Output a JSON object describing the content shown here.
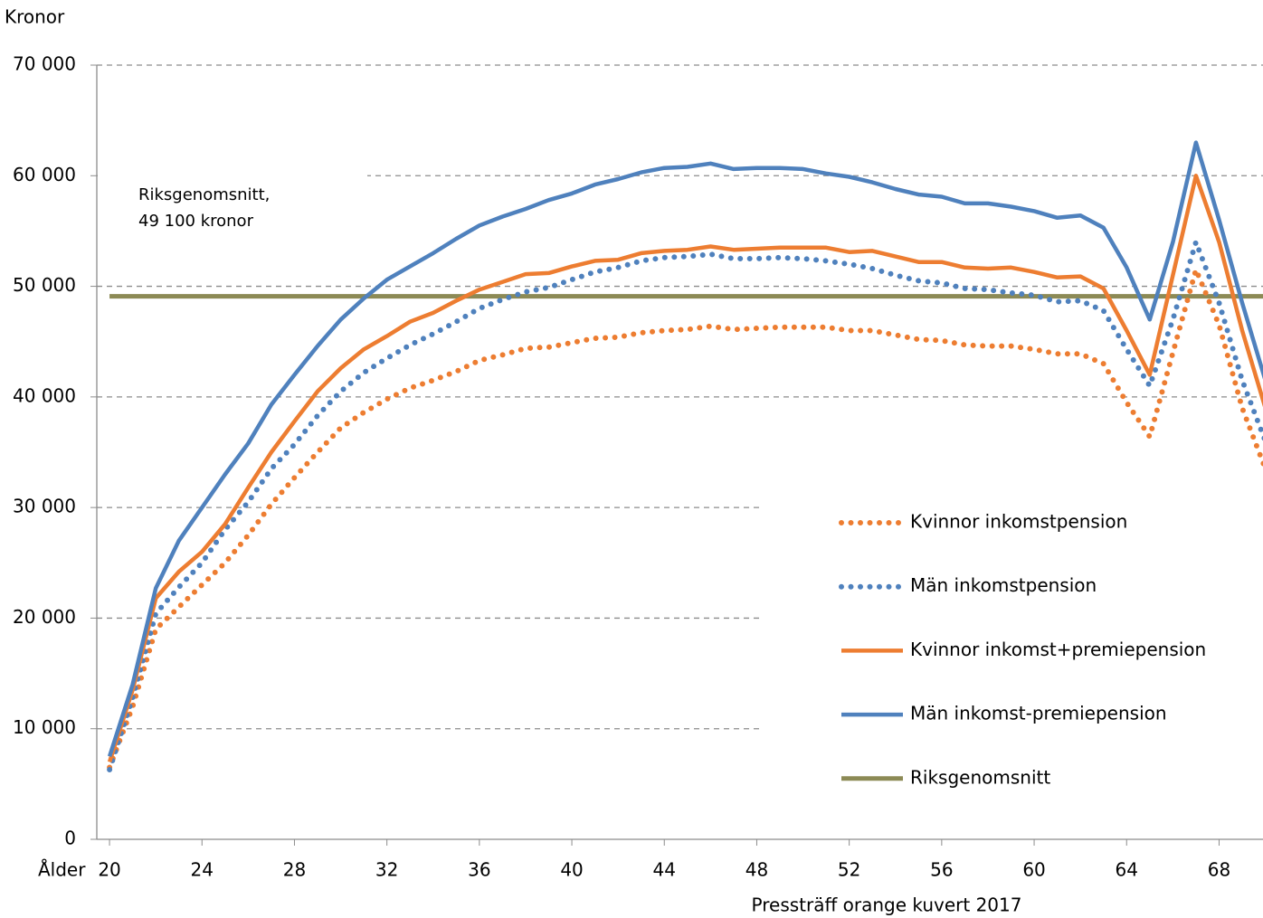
{
  "chart_data": {
    "type": "line",
    "y_label": "Kronor",
    "x_label": "Ålder",
    "footer": "Pressträff orange kuvert 2017",
    "annotation": [
      "Riksgenomsnitt,",
      "49 100 kronor"
    ],
    "x": [
      20,
      21,
      22,
      23,
      24,
      25,
      26,
      27,
      28,
      29,
      30,
      31,
      32,
      33,
      34,
      35,
      36,
      37,
      38,
      39,
      40,
      41,
      42,
      43,
      44,
      45,
      46,
      47,
      48,
      49,
      50,
      51,
      52,
      53,
      54,
      55,
      56,
      57,
      58,
      59,
      60,
      61,
      62,
      63,
      64,
      65,
      66,
      67,
      68,
      69,
      70
    ],
    "xlim": [
      19.45,
      69.9
    ],
    "xticks": [
      20,
      24,
      28,
      32,
      36,
      40,
      44,
      48,
      52,
      56,
      60,
      64,
      68
    ],
    "ylim": [
      0,
      70000
    ],
    "yticks": [
      0,
      {
        "value": 10000,
        "label": "10 000"
      },
      {
        "value": 20000,
        "label": "20 000"
      },
      {
        "value": 30000,
        "label": "30 000"
      },
      {
        "value": 40000,
        "label": "40 000"
      },
      {
        "value": 50000,
        "label": "50 000"
      },
      {
        "value": 60000,
        "label": "60 000"
      },
      {
        "value": 70000,
        "label": "70 000"
      }
    ],
    "grid": true,
    "series": [
      {
        "name": "Kvinnor inkomstpension",
        "color": "#ed7d31",
        "style": "dotted",
        "values": [
          6500,
          12000,
          19000,
          21000,
          23000,
          25000,
          27500,
          30300,
          32700,
          35000,
          37200,
          38600,
          39800,
          40800,
          41500,
          42300,
          43300,
          43800,
          44400,
          44500,
          44900,
          45300,
          45400,
          45800,
          46000,
          46100,
          46400,
          46100,
          46200,
          46300,
          46300,
          46300,
          46000,
          46000,
          45600,
          45200,
          45100,
          44700,
          44600,
          44600,
          44300,
          43900,
          43900,
          43000,
          39500,
          36400,
          44000,
          51500,
          46500,
          39000,
          33500
        ]
      },
      {
        "name": "Män inkomstpension",
        "color": "#4f81bd",
        "style": "dotted",
        "values": [
          6300,
          12800,
          20400,
          22800,
          25000,
          28000,
          30500,
          33500,
          35700,
          38300,
          40500,
          42200,
          43500,
          44700,
          45700,
          46800,
          48000,
          48800,
          49500,
          49900,
          50600,
          51300,
          51700,
          52300,
          52600,
          52700,
          52900,
          52500,
          52500,
          52600,
          52500,
          52300,
          52000,
          51600,
          51000,
          50500,
          50300,
          49800,
          49700,
          49400,
          49200,
          48600,
          48700,
          47800,
          44300,
          41000,
          47000,
          54000,
          48500,
          41500,
          36000
        ]
      },
      {
        "name": "Kvinnor inkomst+premiepension",
        "color": "#ed7d31",
        "style": "solid",
        "values": [
          7000,
          13500,
          21800,
          24200,
          26000,
          28500,
          31800,
          35000,
          37800,
          40500,
          42600,
          44300,
          45500,
          46800,
          47600,
          48700,
          49700,
          50400,
          51100,
          51200,
          51800,
          52300,
          52400,
          53000,
          53200,
          53300,
          53600,
          53300,
          53400,
          53500,
          53500,
          53500,
          53100,
          53200,
          52700,
          52200,
          52200,
          51700,
          51600,
          51700,
          51300,
          50800,
          50900,
          49800,
          46000,
          42000,
          51000,
          60000,
          54000,
          46000,
          39000
        ]
      },
      {
        "name": "Män inkomst-premiepension",
        "color": "#4f81bd",
        "style": "solid",
        "values": [
          7500,
          14000,
          22700,
          27000,
          30000,
          33000,
          35800,
          39300,
          42000,
          44600,
          47000,
          48900,
          50600,
          51800,
          53000,
          54300,
          55500,
          56300,
          57000,
          57800,
          58400,
          59200,
          59700,
          60300,
          60700,
          60800,
          61100,
          60600,
          60700,
          60700,
          60600,
          60200,
          59900,
          59400,
          58800,
          58300,
          58100,
          57500,
          57500,
          57200,
          56800,
          56200,
          56400,
          55300,
          51700,
          47000,
          54000,
          63000,
          56000,
          48500,
          41500
        ]
      }
    ],
    "reference": {
      "name": "Riksgenomsnitt",
      "color": "#8c8a55",
      "value": 49100
    }
  }
}
